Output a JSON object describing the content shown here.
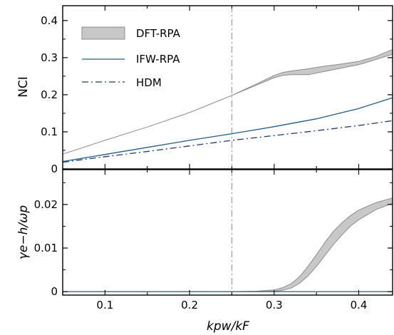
{
  "chart_data": [
    {
      "type": "line",
      "panel": "top",
      "ylabel": "NCI",
      "xlim": [
        0.05,
        0.44
      ],
      "ylim": [
        0,
        0.44
      ],
      "yticks": [
        0,
        0.1,
        0.2,
        0.3,
        0.4
      ],
      "ytick_labels": [
        "0",
        "0.1",
        "0.2",
        "0.3",
        "0.4"
      ],
      "vline": 0.25,
      "legend_position": "top-left",
      "series": [
        {
          "name": "DFT-RPA",
          "style": "band",
          "color": "#c8c8c8",
          "edge_color": "#8c8c8c",
          "x": [
            0.05,
            0.1,
            0.15,
            0.2,
            0.25,
            0.28,
            0.3,
            0.31,
            0.32,
            0.34,
            0.36,
            0.38,
            0.4,
            0.42,
            0.44
          ],
          "lower": [
            0.04,
            0.077,
            0.113,
            0.152,
            0.198,
            0.227,
            0.246,
            0.252,
            0.254,
            0.254,
            0.263,
            0.272,
            0.281,
            0.295,
            0.309
          ],
          "upper": [
            0.04,
            0.077,
            0.113,
            0.152,
            0.198,
            0.23,
            0.252,
            0.26,
            0.264,
            0.27,
            0.277,
            0.283,
            0.29,
            0.303,
            0.322
          ]
        },
        {
          "name": "IFW-RPA",
          "style": "solid",
          "color": "#1f5f8b",
          "x": [
            0.05,
            0.1,
            0.15,
            0.2,
            0.25,
            0.3,
            0.35,
            0.4,
            0.44
          ],
          "y": [
            0.02,
            0.039,
            0.058,
            0.077,
            0.095,
            0.114,
            0.135,
            0.163,
            0.192
          ]
        },
        {
          "name": "HDM",
          "style": "dashdot",
          "color": "#1f3a70",
          "x": [
            0.05,
            0.1,
            0.15,
            0.2,
            0.25,
            0.3,
            0.35,
            0.4,
            0.44
          ],
          "y": [
            0.018,
            0.033,
            0.047,
            0.062,
            0.077,
            0.09,
            0.103,
            0.117,
            0.13
          ]
        }
      ]
    },
    {
      "type": "line",
      "panel": "bottom",
      "ylabel": "γe−h/ωp",
      "xlabel": "kpw/kF",
      "xlim": [
        0.05,
        0.44
      ],
      "ylim": [
        -0.0008,
        0.028
      ],
      "yticks": [
        0,
        0.01,
        0.02
      ],
      "ytick_labels": [
        "0",
        "0.01",
        "0.02"
      ],
      "xticks": [
        0.1,
        0.2,
        0.3,
        0.4
      ],
      "xtick_labels": [
        "0.1",
        "0.2",
        "0.3",
        "0.4"
      ],
      "vline": 0.25,
      "series": [
        {
          "name": "DFT-RPA",
          "style": "band",
          "color": "#c8c8c8",
          "edge_color": "#8c8c8c",
          "x": [
            0.05,
            0.25,
            0.28,
            0.3,
            0.31,
            0.32,
            0.33,
            0.34,
            0.35,
            0.36,
            0.37,
            0.38,
            0.39,
            0.4,
            0.42,
            0.44
          ],
          "lower": [
            0,
            0,
            0,
            0.0001,
            0.0003,
            0.0008,
            0.0019,
            0.0036,
            0.0058,
            0.0083,
            0.0108,
            0.013,
            0.015,
            0.0165,
            0.0188,
            0.0203
          ],
          "upper": [
            0,
            0,
            0.0001,
            0.0004,
            0.0009,
            0.0018,
            0.0034,
            0.0058,
            0.0085,
            0.0113,
            0.0138,
            0.0158,
            0.0174,
            0.0187,
            0.0204,
            0.0215
          ]
        },
        {
          "name": "IFW-RPA",
          "style": "solid",
          "color": "#1f5f8b",
          "x": [
            0.05,
            0.44
          ],
          "y": [
            0,
            0
          ]
        }
      ]
    }
  ],
  "legend": [
    {
      "label": "DFT-RPA",
      "style": "band"
    },
    {
      "label": "IFW-RPA",
      "style": "solid"
    },
    {
      "label": "HDM",
      "style": "dashdot"
    }
  ]
}
